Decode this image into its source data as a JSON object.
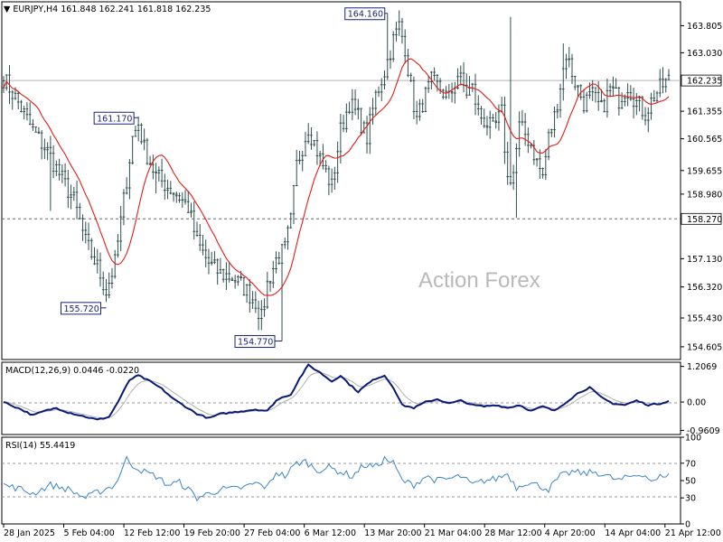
{
  "symbol_header": {
    "text": "▼ EURJPY,H4  161.848 162.241 161.818 162.235"
  },
  "watermark": "Action Forex",
  "colors": {
    "candles": "#2f4f4f",
    "ma": "#e41b17",
    "macd": "#0a1a7a",
    "signal": "#b0b0b0",
    "rsi": "#3a86c8",
    "grid_dash": "#9a9a9a",
    "current_line": "#b5b5b5"
  },
  "chart_data": [
    {
      "type": "candlestick",
      "name": "price",
      "yticks": [
        "163.805",
        "163.030",
        "162.235",
        "161.355",
        "160.565",
        "159.655",
        "158.980",
        "158.270",
        "157.130",
        "156.320",
        "155.430",
        "154.605"
      ],
      "ylim": [
        154.24,
        164.49
      ],
      "current_price": "162.235",
      "support_level": "158.270",
      "price_labels": [
        "164.160",
        "161.170",
        "155.720",
        "154.770"
      ],
      "moving_average": "red line",
      "anchor_points": [
        [
          0,
          162.3
        ],
        [
          5,
          161.6
        ],
        [
          10,
          160.8
        ],
        [
          15,
          160.2
        ],
        [
          20,
          159.4
        ],
        [
          24,
          158.8
        ],
        [
          28,
          157.6
        ],
        [
          32,
          156.9
        ],
        [
          35,
          156.2
        ],
        [
          38,
          157.0
        ],
        [
          41,
          158.8
        ],
        [
          44,
          160.6
        ],
        [
          46,
          161.0
        ],
        [
          48,
          160.3
        ],
        [
          52,
          159.5
        ],
        [
          56,
          159.2
        ],
        [
          60,
          158.9
        ],
        [
          63,
          158.6
        ],
        [
          66,
          157.6
        ],
        [
          70,
          157.0
        ],
        [
          74,
          156.7
        ],
        [
          78,
          156.6
        ],
        [
          82,
          156.3
        ],
        [
          86,
          155.9
        ],
        [
          88,
          155.4
        ],
        [
          90,
          156.4
        ],
        [
          93,
          157.1
        ],
        [
          96,
          157.4
        ],
        [
          98,
          158.2
        ],
        [
          100,
          159.8
        ],
        [
          104,
          160.9
        ],
        [
          108,
          160.0
        ],
        [
          112,
          159.2
        ],
        [
          115,
          160.8
        ],
        [
          118,
          161.6
        ],
        [
          121,
          161.2
        ],
        [
          124,
          160.6
        ],
        [
          127,
          161.8
        ],
        [
          130,
          162.5
        ],
        [
          133,
          163.4
        ],
        [
          135,
          163.8
        ],
        [
          137,
          163.2
        ],
        [
          139,
          162.0
        ],
        [
          141,
          161.1
        ],
        [
          143,
          161.6
        ],
        [
          146,
          162.2
        ],
        [
          149,
          162.0
        ],
        [
          152,
          161.7
        ],
        [
          155,
          162.4
        ],
        [
          158,
          161.9
        ],
        [
          160,
          162.0
        ],
        [
          162,
          161.3
        ],
        [
          164,
          161.1
        ],
        [
          167,
          160.8
        ],
        [
          170,
          161.3
        ],
        [
          172,
          159.4
        ],
        [
          174,
          159.6
        ],
        [
          176,
          160.9
        ],
        [
          178,
          160.7
        ],
        [
          180,
          160.4
        ],
        [
          182,
          159.9
        ],
        [
          184,
          159.5
        ],
        [
          186,
          160.6
        ],
        [
          188,
          161.2
        ],
        [
          190,
          162.1
        ],
        [
          192,
          163.0
        ],
        [
          195,
          162.2
        ],
        [
          198,
          161.6
        ],
        [
          201,
          161.8
        ],
        [
          204,
          161.4
        ],
        [
          207,
          162.0
        ],
        [
          210,
          161.7
        ],
        [
          213,
          162.1
        ],
        [
          216,
          161.6
        ],
        [
          219,
          161.3
        ],
        [
          222,
          161.8
        ],
        [
          225,
          162.1
        ],
        [
          227,
          162.235
        ]
      ],
      "spikes": [
        [
          16,
          158.5
        ],
        [
          52,
          159.0
        ],
        [
          95,
          154.77
        ],
        [
          131,
          164.16
        ],
        [
          173,
          164.06
        ],
        [
          175,
          158.3
        ],
        [
          191,
          163.3
        ]
      ]
    },
    {
      "type": "line",
      "name": "MACD(12,26,9) 0.0446 -0.0220",
      "yticks": [
        "1.2069",
        "0.00",
        "-0.9609"
      ],
      "ylim": [
        -1.1,
        1.35
      ],
      "anchor_points": [
        [
          0,
          0.0
        ],
        [
          6,
          -0.25
        ],
        [
          10,
          -0.45
        ],
        [
          14,
          -0.3
        ],
        [
          18,
          -0.2
        ],
        [
          22,
          -0.35
        ],
        [
          28,
          -0.5
        ],
        [
          32,
          -0.6
        ],
        [
          36,
          -0.5
        ],
        [
          39,
          0.0
        ],
        [
          43,
          0.75
        ],
        [
          46,
          0.9
        ],
        [
          50,
          0.7
        ],
        [
          54,
          0.45
        ],
        [
          58,
          0.1
        ],
        [
          62,
          -0.15
        ],
        [
          66,
          -0.4
        ],
        [
          70,
          -0.55
        ],
        [
          74,
          -0.4
        ],
        [
          78,
          -0.35
        ],
        [
          82,
          -0.3
        ],
        [
          86,
          -0.25
        ],
        [
          90,
          -0.3
        ],
        [
          93,
          0.05
        ],
        [
          96,
          0.2
        ],
        [
          98,
          0.25
        ],
        [
          101,
          0.8
        ],
        [
          104,
          1.25
        ],
        [
          108,
          1.0
        ],
        [
          112,
          0.7
        ],
        [
          115,
          0.9
        ],
        [
          118,
          0.6
        ],
        [
          121,
          0.35
        ],
        [
          124,
          0.6
        ],
        [
          127,
          0.8
        ],
        [
          130,
          0.9
        ],
        [
          133,
          0.5
        ],
        [
          136,
          -0.1
        ],
        [
          140,
          -0.2
        ],
        [
          144,
          0.0
        ],
        [
          148,
          0.1
        ],
        [
          152,
          -0.05
        ],
        [
          156,
          0.05
        ],
        [
          160,
          -0.1
        ],
        [
          164,
          -0.15
        ],
        [
          168,
          -0.1
        ],
        [
          172,
          -0.2
        ],
        [
          176,
          -0.1
        ],
        [
          180,
          -0.3
        ],
        [
          184,
          -0.15
        ],
        [
          188,
          -0.3
        ],
        [
          192,
          0.0
        ],
        [
          196,
          0.3
        ],
        [
          200,
          0.5
        ],
        [
          204,
          0.15
        ],
        [
          208,
          -0.05
        ],
        [
          212,
          -0.1
        ],
        [
          216,
          0.05
        ],
        [
          220,
          -0.1
        ],
        [
          224,
          -0.05
        ],
        [
          227,
          0.0446
        ]
      ]
    },
    {
      "type": "line",
      "name": "RSI(14) 55.4419",
      "yticks": [
        "100",
        "70",
        "50",
        "30",
        "0"
      ],
      "ylim": [
        0,
        100
      ],
      "levels": [
        70,
        30
      ],
      "anchor_points": [
        [
          0,
          45
        ],
        [
          6,
          40
        ],
        [
          10,
          35
        ],
        [
          16,
          45
        ],
        [
          22,
          40
        ],
        [
          28,
          30
        ],
        [
          33,
          38
        ],
        [
          38,
          45
        ],
        [
          42,
          75
        ],
        [
          44,
          68
        ],
        [
          48,
          60
        ],
        [
          52,
          55
        ],
        [
          56,
          45
        ],
        [
          60,
          48
        ],
        [
          64,
          37
        ],
        [
          66,
          30
        ],
        [
          70,
          35
        ],
        [
          74,
          40
        ],
        [
          78,
          40
        ],
        [
          82,
          42
        ],
        [
          86,
          47
        ],
        [
          90,
          42
        ],
        [
          93,
          60
        ],
        [
          96,
          55
        ],
        [
          100,
          70
        ],
        [
          103,
          72
        ],
        [
          107,
          62
        ],
        [
          111,
          65
        ],
        [
          115,
          60
        ],
        [
          119,
          55
        ],
        [
          123,
          68
        ],
        [
          127,
          66
        ],
        [
          130,
          75
        ],
        [
          133,
          70
        ],
        [
          136,
          50
        ],
        [
          140,
          45
        ],
        [
          144,
          55
        ],
        [
          148,
          50
        ],
        [
          152,
          52
        ],
        [
          156,
          55
        ],
        [
          160,
          45
        ],
        [
          164,
          50
        ],
        [
          168,
          52
        ],
        [
          172,
          58
        ],
        [
          175,
          42
        ],
        [
          178,
          48
        ],
        [
          182,
          45
        ],
        [
          186,
          40
        ],
        [
          190,
          55
        ],
        [
          194,
          60
        ],
        [
          198,
          58
        ],
        [
          202,
          60
        ],
        [
          206,
          55
        ],
        [
          210,
          50
        ],
        [
          214,
          55
        ],
        [
          218,
          58
        ],
        [
          222,
          48
        ],
        [
          225,
          57
        ],
        [
          227,
          55.4419
        ]
      ]
    }
  ],
  "x_axis": {
    "labels": [
      "28 Jan 2025",
      "5 Feb 04:00",
      "12 Feb 12:00",
      "19 Feb 20:00",
      "27 Feb 04:00",
      "6 Mar 12:00",
      "13 Mar 20:00",
      "21 Mar 04:00",
      "28 Mar 12:00",
      "4 Apr 20:00",
      "14 Apr 04:00",
      "21 Apr 12:00"
    ]
  }
}
